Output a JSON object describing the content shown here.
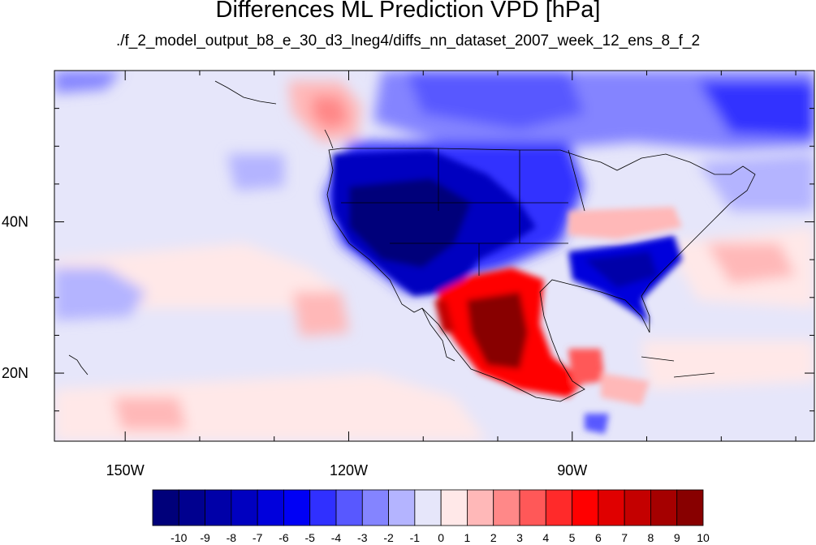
{
  "title": "Differences ML Prediction VPD [hPa]",
  "subtitle": "./f_2_model_output_b8_e_30_d3_lneg4/diffs_nn_dataset_2007_week_12_ens_8_f_2",
  "map": {
    "lon_range": [
      -159.5,
      -57.5
    ],
    "lat_range": [
      11,
      60
    ],
    "lon_ticks": [
      {
        "value": -150,
        "label": "150W"
      },
      {
        "value": -120,
        "label": "120W"
      },
      {
        "value": -90,
        "label": "90W"
      }
    ],
    "lat_ticks": [
      {
        "value": 40,
        "label": "40N"
      },
      {
        "value": 20,
        "label": "20N"
      }
    ]
  },
  "colorbar": {
    "levels": [
      "-10",
      "-9",
      "-8",
      "-7",
      "-6",
      "-5",
      "-4",
      "-3",
      "-2",
      "-1",
      "0",
      "1",
      "2",
      "3",
      "4",
      "5",
      "6",
      "7",
      "8",
      "9",
      "10"
    ],
    "colors": [
      "#00007a",
      "#00008f",
      "#0000a8",
      "#0000c0",
      "#0000dc",
      "#0000f5",
      "#3030ff",
      "#5858ff",
      "#8484ff",
      "#b4b4ff",
      "#e6e6fa",
      "#ffe8e8",
      "#ffb8b8",
      "#ff8888",
      "#ff5858",
      "#ff2a2a",
      "#ff0000",
      "#e00000",
      "#c40000",
      "#a50000",
      "#880000"
    ]
  }
}
